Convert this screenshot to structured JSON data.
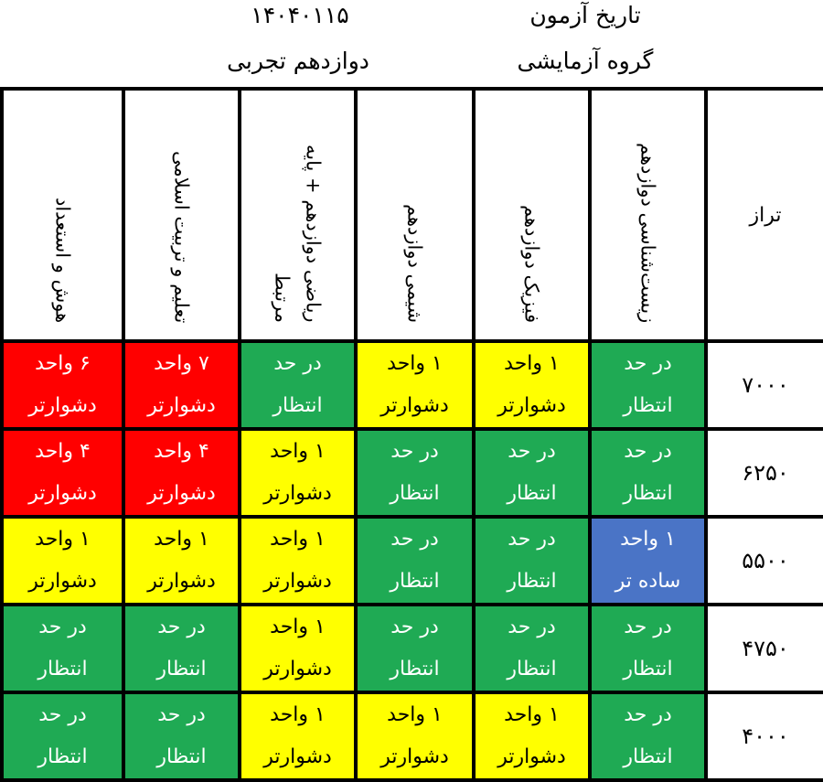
{
  "header": {
    "date_label": "تاریخ آزمون",
    "date_value": "۱۴۰۴۰۱۱۵",
    "group_label": "گروه آزمایشی",
    "grade_label": "دوازدهم تجربی"
  },
  "table": {
    "taraz_header": "تراز",
    "subjects": [
      "زیست‌شناسی دوازدهم",
      "فیزیک دوازدهم",
      "شیمی دوازدهم",
      "ریاضی دوازدهم + پایه مرتبط",
      "تعلیم و تربیت اسلامی",
      "هوش و استعداد"
    ],
    "rows": [
      {
        "taraz": "۷۰۰۰",
        "cells": [
          {
            "line1": "در حد",
            "line2": "انتظار",
            "color": "green"
          },
          {
            "line1": "۱ واحد",
            "line2": "دشوارتر",
            "color": "yellow"
          },
          {
            "line1": "۱ واحد",
            "line2": "دشوارتر",
            "color": "yellow"
          },
          {
            "line1": "در حد",
            "line2": "انتظار",
            "color": "green"
          },
          {
            "line1": "۷ واحد",
            "line2": "دشوارتر",
            "color": "red"
          },
          {
            "line1": "۶ واحد",
            "line2": "دشوارتر",
            "color": "red"
          }
        ]
      },
      {
        "taraz": "۶۲۵۰",
        "cells": [
          {
            "line1": "در حد",
            "line2": "انتظار",
            "color": "green"
          },
          {
            "line1": "در حد",
            "line2": "انتظار",
            "color": "green"
          },
          {
            "line1": "در حد",
            "line2": "انتظار",
            "color": "green"
          },
          {
            "line1": "۱ واحد",
            "line2": "دشوارتر",
            "color": "yellow"
          },
          {
            "line1": "۴ واحد",
            "line2": "دشوارتر",
            "color": "red"
          },
          {
            "line1": "۴ واحد",
            "line2": "دشوارتر",
            "color": "red"
          }
        ]
      },
      {
        "taraz": "۵۵۰۰",
        "cells": [
          {
            "line1": "۱ واحد",
            "line2": "ساده تر",
            "color": "blue"
          },
          {
            "line1": "در حد",
            "line2": "انتظار",
            "color": "green"
          },
          {
            "line1": "در حد",
            "line2": "انتظار",
            "color": "green"
          },
          {
            "line1": "۱ واحد",
            "line2": "دشوارتر",
            "color": "yellow"
          },
          {
            "line1": "۱ واحد",
            "line2": "دشوارتر",
            "color": "yellow"
          },
          {
            "line1": "۱ واحد",
            "line2": "دشوارتر",
            "color": "yellow"
          }
        ]
      },
      {
        "taraz": "۴۷۵۰",
        "cells": [
          {
            "line1": "در حد",
            "line2": "انتظار",
            "color": "green"
          },
          {
            "line1": "در حد",
            "line2": "انتظار",
            "color": "green"
          },
          {
            "line1": "در حد",
            "line2": "انتظار",
            "color": "green"
          },
          {
            "line1": "۱ واحد",
            "line2": "دشوارتر",
            "color": "yellow"
          },
          {
            "line1": "در حد",
            "line2": "انتظار",
            "color": "green"
          },
          {
            "line1": "در حد",
            "line2": "انتظار",
            "color": "green"
          }
        ]
      },
      {
        "taraz": "۴۰۰۰",
        "cells": [
          {
            "line1": "در حد",
            "line2": "انتظار",
            "color": "green"
          },
          {
            "line1": "۱ واحد",
            "line2": "دشوارتر",
            "color": "yellow"
          },
          {
            "line1": "۱ واحد",
            "line2": "دشوارتر",
            "color": "yellow"
          },
          {
            "line1": "۱ واحد",
            "line2": "دشوارتر",
            "color": "yellow"
          },
          {
            "line1": "در حد",
            "line2": "انتظار",
            "color": "green"
          },
          {
            "line1": "در حد",
            "line2": "انتظار",
            "color": "green"
          }
        ]
      }
    ]
  },
  "colors": {
    "green": "#1faa54",
    "yellow": "#ffff00",
    "red": "#ff0000",
    "blue": "#4a74c6"
  }
}
